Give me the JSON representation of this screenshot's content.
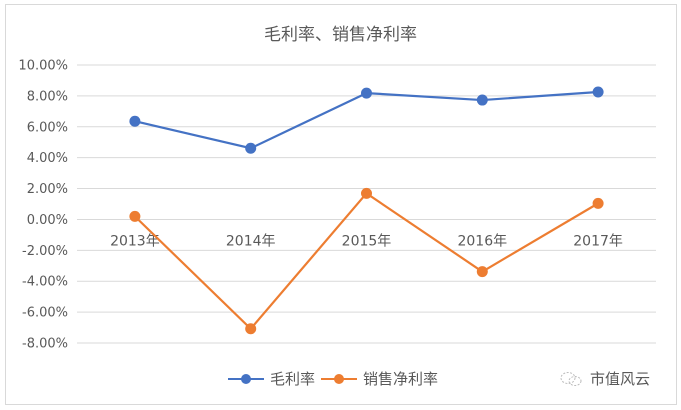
{
  "chart_data": {
    "type": "line",
    "title": "毛利率、销售净利率",
    "categories": [
      "2013年",
      "2014年",
      "2015年",
      "2016年",
      "2017年"
    ],
    "series": [
      {
        "name": "毛利率",
        "color": "#4472c4",
        "values": [
          6.36,
          4.61,
          8.18,
          7.73,
          8.25
        ]
      },
      {
        "name": "销售净利率",
        "color": "#ed7d31",
        "values": [
          0.2,
          -7.08,
          1.69,
          -3.38,
          1.04
        ]
      }
    ],
    "xlabel": "",
    "ylabel": "",
    "ylim": [
      -8,
      10
    ],
    "yticks": [
      "10.00%",
      "8.00%",
      "6.00%",
      "4.00%",
      "2.00%",
      "0.00%",
      "-2.00%",
      "-4.00%",
      "-6.00%",
      "-8.00%"
    ],
    "grid": true,
    "legend_position": "bottom"
  },
  "legend": {
    "items": [
      {
        "label": "毛利率",
        "color": "#4472c4"
      },
      {
        "label": "销售净利率",
        "color": "#ed7d31"
      }
    ]
  },
  "watermark": {
    "icon": "wechat-icon",
    "text": "市值风云"
  }
}
